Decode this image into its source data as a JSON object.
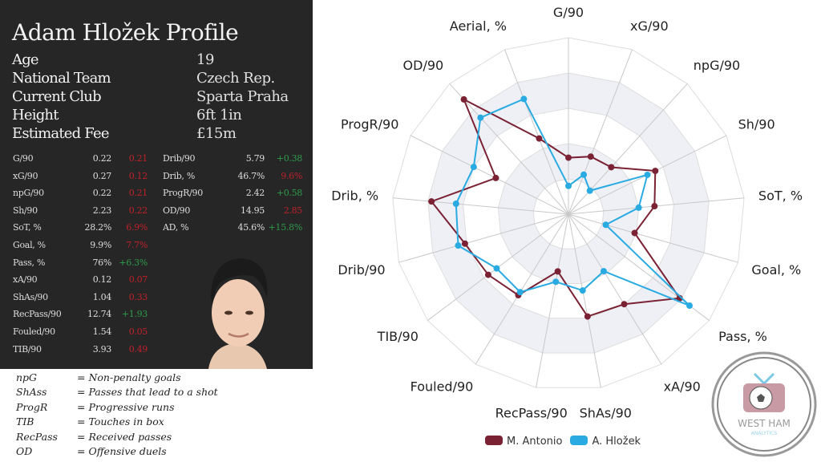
{
  "title": "Adam Hložek Profile",
  "info": [
    {
      "label": "Age",
      "value": "19"
    },
    {
      "label": "National Team",
      "value": "Czech Rep."
    },
    {
      "label": "Current Club",
      "value": "Sparta Praha"
    },
    {
      "label": "Height",
      "value": "6ft 1in"
    },
    {
      "label": "Estimated Fee",
      "value": "£15m"
    }
  ],
  "stats_left": [
    {
      "name": "G/90",
      "value": "0.22",
      "diff": "0.21",
      "sign": "neg"
    },
    {
      "name": "xG/90",
      "value": "0.27",
      "diff": "0.12",
      "sign": "neg"
    },
    {
      "name": "npG/90",
      "value": "0.22",
      "diff": "0.21",
      "sign": "neg"
    },
    {
      "name": "Sh/90",
      "value": "2.23",
      "diff": "0.22",
      "sign": "neg"
    },
    {
      "name": "SoT, %",
      "value": "28.2%",
      "diff": "6.9%",
      "sign": "neg"
    },
    {
      "name": "Goal, %",
      "value": "9.9%",
      "diff": "7.7%",
      "sign": "neg"
    },
    {
      "name": "Pass, %",
      "value": "76%",
      "diff": "+6.3%",
      "sign": "pos"
    },
    {
      "name": "xA/90",
      "value": "0.12",
      "diff": "0.07",
      "sign": "neg"
    },
    {
      "name": "ShAs/90",
      "value": "1.04",
      "diff": "0.33",
      "sign": "neg"
    },
    {
      "name": "RecPass/90",
      "value": "12.74",
      "diff": "+1.93",
      "sign": "pos"
    },
    {
      "name": "Fouled/90",
      "value": "1.54",
      "diff": "0.05",
      "sign": "neg"
    },
    {
      "name": "TIB/90",
      "value": "3.93",
      "diff": "0.49",
      "sign": "neg"
    }
  ],
  "stats_right": [
    {
      "name": "Drib/90",
      "value": "5.79",
      "diff": "+0.38",
      "sign": "pos"
    },
    {
      "name": "Drib, %",
      "value": "46.7%",
      "diff": "9.6%",
      "sign": "neg"
    },
    {
      "name": "ProgR/90",
      "value": "2.42",
      "diff": "+0.58",
      "sign": "pos"
    },
    {
      "name": "OD/90",
      "value": "14.95",
      "diff": "2.85",
      "sign": "neg"
    },
    {
      "name": "AD, %",
      "value": "45.6%",
      "diff": "+15.8%",
      "sign": "pos"
    }
  ],
  "glossary": [
    {
      "abbr": "npG",
      "def": "= Non-penalty goals"
    },
    {
      "abbr": "ShAss",
      "def": "= Passes that lead to a shot"
    },
    {
      "abbr": "ProgR",
      "def": "= Progressive runs"
    },
    {
      "abbr": "TIB",
      "def": "= Touches in box"
    },
    {
      "abbr": "RecPass",
      "def": "= Received passes"
    },
    {
      "abbr": "OD",
      "def": "= Offensive duels"
    }
  ],
  "logo": {
    "line1": "WEST HAM",
    "line2": "ANALYTICS"
  },
  "chart_data": {
    "type": "radar",
    "axes": [
      "G/90",
      "xG/90",
      "npG/90",
      "Sh/90",
      "SoT, %",
      "Goal, %",
      "Pass, %",
      "xA/90",
      "ShAs/90",
      "RecPass/90",
      "Fouled/90",
      "TIB/90",
      "Drib/90",
      "Drib, %",
      "ProgR/90",
      "OD/90",
      "Aerial, %"
    ],
    "range": [
      0,
      1
    ],
    "rings": 5,
    "legend_position": "bottom",
    "series": [
      {
        "name": "M. Antonio",
        "color": "#7a2234",
        "values": [
          0.32,
          0.35,
          0.36,
          0.55,
          0.49,
          0.39,
          0.79,
          0.6,
          0.59,
          0.33,
          0.54,
          0.57,
          0.61,
          0.78,
          0.46,
          0.88,
          0.46
        ]
      },
      {
        "name": "A. Hložek",
        "color": "#29abe2",
        "values": [
          0.16,
          0.24,
          0.18,
          0.5,
          0.4,
          0.22,
          0.86,
          0.38,
          0.44,
          0.39,
          0.52,
          0.51,
          0.65,
          0.64,
          0.6,
          0.74,
          0.7
        ]
      }
    ]
  }
}
